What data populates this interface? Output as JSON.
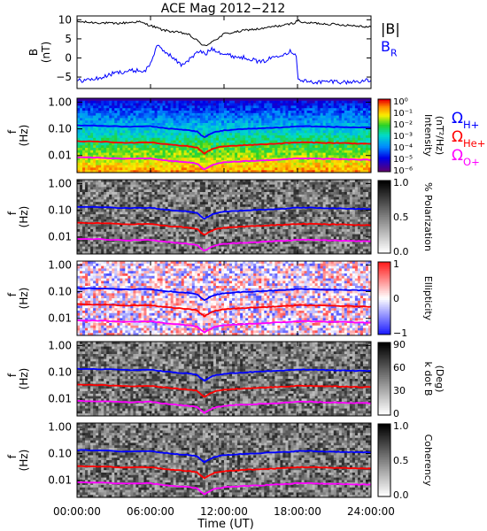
{
  "title": "ACE Mag 2012−212",
  "xlabel": "Time (UT)",
  "time_ticks": [
    "00:00:00",
    "06:00:00",
    "12:00:00",
    "18:00:00",
    "24:00:00"
  ],
  "freq_ticks": [
    "1.00",
    "0.10",
    "0.01"
  ],
  "freq_axis_label": [
    "f",
    "(Hz)"
  ],
  "legend_B": [
    {
      "label": "|B|",
      "color": "#000000"
    },
    {
      "label": "B",
      "sub": "R",
      "color": "#0000ff"
    }
  ],
  "legend_gyro": [
    {
      "label": "Ω",
      "sub": "H+",
      "color": "#0000ff"
    },
    {
      "label": "Ω",
      "sub": "He+",
      "color": "#ff0000"
    },
    {
      "label": "Ω",
      "sub": "O+",
      "color": "#ff00ff"
    }
  ],
  "colorbars": [
    {
      "label": [
        "Intensity",
        "(nT²/Hz)"
      ],
      "ticks": [
        "10⁰",
        "10⁻¹",
        "10⁻²",
        "10⁻³",
        "10⁻⁴",
        "10⁻⁵",
        "10⁻⁶"
      ],
      "scale": "rainbow"
    },
    {
      "label": [
        "% Polarization"
      ],
      "ticks": [
        "1.0",
        "0.5",
        "0.0"
      ],
      "scale": "gray"
    },
    {
      "label": [
        "Ellipticity"
      ],
      "ticks": [
        "1",
        "0",
        "−1"
      ],
      "scale": "bwr"
    },
    {
      "label": [
        "k dot B",
        "(Deg)"
      ],
      "ticks": [
        "90",
        "60",
        "30",
        "0"
      ],
      "scale": "gray"
    },
    {
      "label": [
        "Coherency"
      ],
      "ticks": [
        "1.0",
        "0.5",
        "0.0"
      ],
      "scale": "gray"
    }
  ],
  "chart_data": {
    "type": "line",
    "title": "ACE Mag 2012−212",
    "x": {
      "label": "Time (UT)",
      "range_hours": [
        0,
        24
      ]
    },
    "panel_B": {
      "ylabel": "B (nT)",
      "ylim": [
        -8,
        11
      ],
      "yticks": [
        10,
        5,
        0,
        -5
      ],
      "series": [
        {
          "name": "|B|",
          "color": "#000000",
          "points": [
            [
              0,
              9.5
            ],
            [
              1,
              9.3
            ],
            [
              2,
              9.2
            ],
            [
              3,
              9.0
            ],
            [
              4,
              9.2
            ],
            [
              5,
              9.5
            ],
            [
              6,
              8.5
            ],
            [
              7,
              7.3
            ],
            [
              8,
              6.8
            ],
            [
              9,
              6.3
            ],
            [
              9.6,
              5.0
            ],
            [
              10.2,
              3.6
            ],
            [
              10.6,
              3.0
            ],
            [
              11.0,
              4.4
            ],
            [
              11.6,
              5.3
            ],
            [
              12,
              6.3
            ],
            [
              13,
              6.8
            ],
            [
              14,
              7.4
            ],
            [
              15,
              7.6
            ],
            [
              16,
              8.2
            ],
            [
              17,
              8.6
            ],
            [
              17.7,
              9.2
            ],
            [
              18.1,
              9.8
            ],
            [
              18.6,
              9.1
            ],
            [
              19,
              9.2
            ],
            [
              20,
              9.0
            ],
            [
              21,
              8.8
            ],
            [
              22,
              8.6
            ],
            [
              23,
              8.4
            ],
            [
              24,
              8.1
            ]
          ]
        },
        {
          "name": "B",
          "sub": "R",
          "color": "#0000ff",
          "points": [
            [
              0,
              -6.0
            ],
            [
              1,
              -5.7
            ],
            [
              2,
              -5.2
            ],
            [
              3,
              -4.0
            ],
            [
              4,
              -3.5
            ],
            [
              5,
              -3.2
            ],
            [
              5.5,
              -3.6
            ],
            [
              6.0,
              -1.5
            ],
            [
              6.5,
              3.2
            ],
            [
              7.0,
              2.0
            ],
            [
              7.5,
              1.0
            ],
            [
              8.0,
              -0.5
            ],
            [
              8.5,
              -1.8
            ],
            [
              9.0,
              -0.8
            ],
            [
              9.5,
              0.5
            ],
            [
              10.0,
              1.8
            ],
            [
              10.5,
              1.0
            ],
            [
              11.0,
              2.5
            ],
            [
              11.5,
              1.8
            ],
            [
              12,
              1.0
            ],
            [
              13,
              0.3
            ],
            [
              14,
              0.0
            ],
            [
              15,
              -1.2
            ],
            [
              15.5,
              -0.5
            ],
            [
              16,
              0.2
            ],
            [
              16.5,
              0.8
            ],
            [
              17,
              1.2
            ],
            [
              17.5,
              1.8
            ],
            [
              17.9,
              0.8
            ],
            [
              18.05,
              -5.8
            ],
            [
              19,
              -6.3
            ],
            [
              20,
              -6.3
            ],
            [
              21,
              -6.1
            ],
            [
              22,
              -6.4
            ],
            [
              23,
              -6.1
            ],
            [
              24,
              -5.9
            ]
          ]
        }
      ]
    },
    "panel_f": {
      "ylabel": "f (Hz)",
      "yscale": "log",
      "ylim": [
        0.0023,
        1.4
      ],
      "yticks": [
        1.0,
        0.1,
        0.01
      ],
      "series": [
        {
          "name": "ΩH+",
          "color": "#0000ff",
          "points": [
            [
              0,
              0.135
            ],
            [
              2,
              0.13
            ],
            [
              4,
              0.12
            ],
            [
              6,
              0.125
            ],
            [
              7,
              0.108
            ],
            [
              8,
              0.098
            ],
            [
              9,
              0.09
            ],
            [
              9.8,
              0.08
            ],
            [
              10.1,
              0.06
            ],
            [
              10.4,
              0.048
            ],
            [
              10.7,
              0.058
            ],
            [
              11.2,
              0.075
            ],
            [
              12,
              0.088
            ],
            [
              13,
              0.094
            ],
            [
              14,
              0.1
            ],
            [
              15,
              0.105
            ],
            [
              16,
              0.11
            ],
            [
              17,
              0.115
            ],
            [
              18,
              0.125
            ],
            [
              19,
              0.125
            ],
            [
              20,
              0.12
            ],
            [
              21,
              0.118
            ],
            [
              22,
              0.115
            ],
            [
              23,
              0.113
            ],
            [
              24,
              0.11
            ]
          ]
        },
        {
          "name": "ΩHe+",
          "color": "#ff0000",
          "points": [
            [
              0,
              0.034
            ],
            [
              2,
              0.033
            ],
            [
              4,
              0.03
            ],
            [
              6,
              0.031
            ],
            [
              7,
              0.027
            ],
            [
              8,
              0.0245
            ],
            [
              9,
              0.0225
            ],
            [
              9.8,
              0.02
            ],
            [
              10.1,
              0.015
            ],
            [
              10.4,
              0.012
            ],
            [
              10.7,
              0.0145
            ],
            [
              11.2,
              0.019
            ],
            [
              12,
              0.022
            ],
            [
              13,
              0.0235
            ],
            [
              14,
              0.025
            ],
            [
              15,
              0.026
            ],
            [
              16,
              0.0275
            ],
            [
              17,
              0.029
            ],
            [
              18,
              0.031
            ],
            [
              19,
              0.031
            ],
            [
              20,
              0.03
            ],
            [
              21,
              0.0295
            ],
            [
              22,
              0.029
            ],
            [
              23,
              0.028
            ],
            [
              24,
              0.0275
            ]
          ]
        },
        {
          "name": "ΩO+",
          "color": "#ff00ff",
          "points": [
            [
              0,
              0.0085
            ],
            [
              2,
              0.0082
            ],
            [
              4,
              0.0075
            ],
            [
              6,
              0.0078
            ],
            [
              7,
              0.0067
            ],
            [
              8,
              0.0061
            ],
            [
              9,
              0.0056
            ],
            [
              9.8,
              0.005
            ],
            [
              10.1,
              0.0038
            ],
            [
              10.4,
              0.003
            ],
            [
              10.7,
              0.0036
            ],
            [
              11.2,
              0.0047
            ],
            [
              12,
              0.0055
            ],
            [
              13,
              0.0059
            ],
            [
              14,
              0.0062
            ],
            [
              15,
              0.0065
            ],
            [
              16,
              0.0069
            ],
            [
              17,
              0.0072
            ],
            [
              18,
              0.0078
            ],
            [
              19,
              0.0078
            ],
            [
              20,
              0.0075
            ],
            [
              21,
              0.0074
            ],
            [
              22,
              0.0072
            ],
            [
              23,
              0.007
            ],
            [
              24,
              0.0069
            ]
          ]
        }
      ]
    },
    "spectrogram_panels": [
      "Intensity (nT²/Hz)",
      "% Polarization",
      "Ellipticity",
      "k dot B (Deg)",
      "Coherency"
    ]
  }
}
